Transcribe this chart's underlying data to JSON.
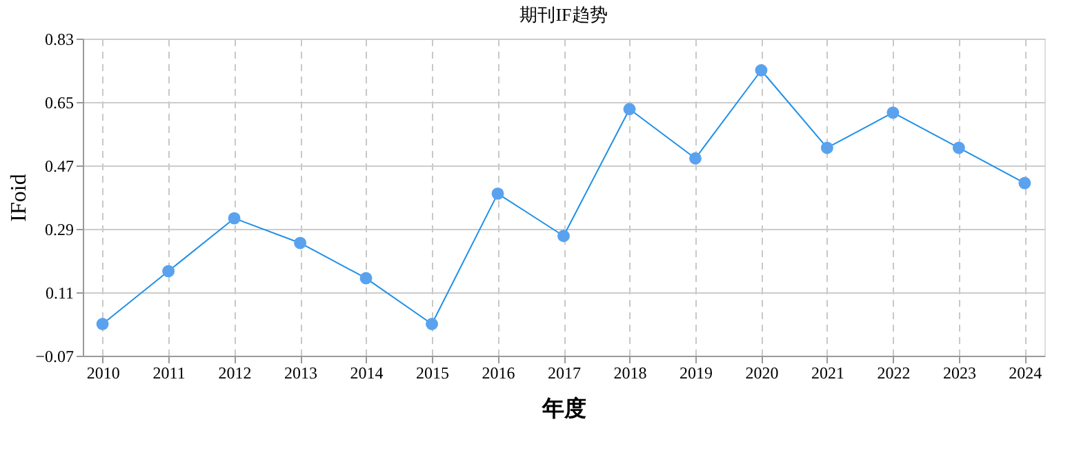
{
  "chart_data": {
    "type": "line",
    "title": "期刊IF趋势",
    "xlabel": "年度",
    "ylabel": "IFoid",
    "categories": [
      "2010",
      "2011",
      "2012",
      "2013",
      "2014",
      "2015",
      "2016",
      "2017",
      "2018",
      "2019",
      "2020",
      "2021",
      "2022",
      "2023",
      "2024"
    ],
    "series": [
      {
        "color": "#1e90e8",
        "values": [
          0.02,
          0.17,
          0.32,
          0.25,
          0.15,
          0.02,
          0.39,
          0.27,
          0.63,
          0.49,
          0.74,
          0.52,
          0.62,
          0.52,
          0.42
        ]
      }
    ],
    "ylim": [
      -0.07,
      0.83
    ],
    "yticks": [
      -0.07,
      0.11,
      0.29,
      0.47,
      0.65,
      0.83
    ],
    "grid": true,
    "marker": "circle",
    "line_style": "solid"
  }
}
